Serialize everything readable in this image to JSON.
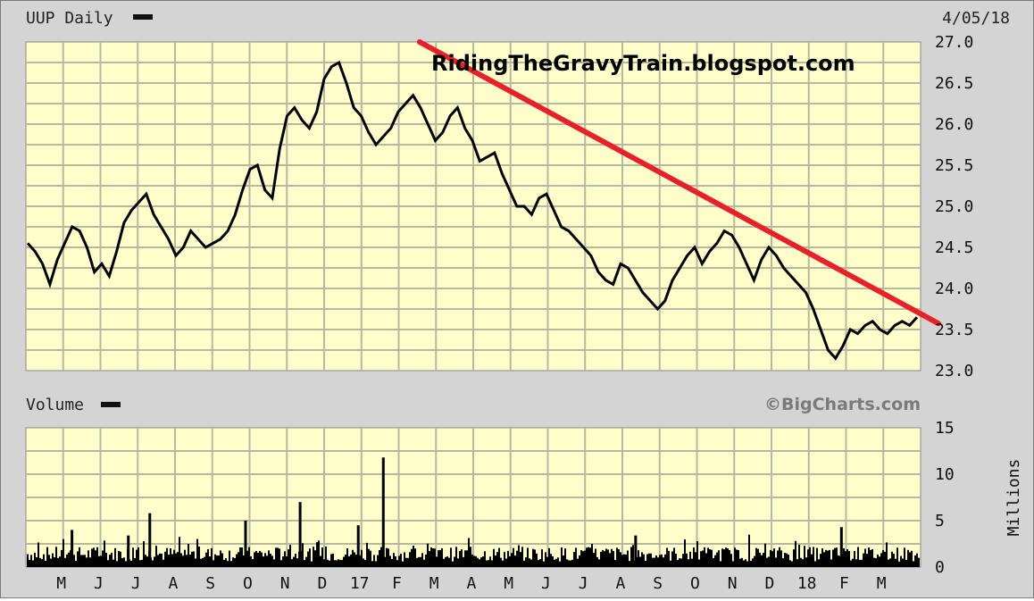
{
  "chart_data": [
    {
      "type": "line",
      "title": "UUP Daily",
      "date_label": "4/05/18",
      "watermark": "RidingTheGravyTrain.blogspot.com",
      "ylim": [
        23.0,
        27.0
      ],
      "y_ticks": [
        "27.0",
        "26.5",
        "26.0",
        "25.5",
        "25.0",
        "24.5",
        "24.0",
        "23.5",
        "23.0"
      ],
      "x_ticks": [
        "M",
        "J",
        "J",
        "A",
        "S",
        "O",
        "N",
        "D",
        "17",
        "F",
        "M",
        "A",
        "M",
        "J",
        "J",
        "A",
        "S",
        "O",
        "N",
        "D",
        "18",
        "F",
        "M"
      ],
      "grid": true,
      "series": [
        {
          "values": [
            24.55,
            24.45,
            24.3,
            24.05,
            24.35,
            24.55,
            24.75,
            24.7,
            24.5,
            24.2,
            24.3,
            24.15,
            24.45,
            24.8,
            24.95,
            25.05,
            25.15,
            24.9,
            24.75,
            24.6,
            24.4,
            24.5,
            24.7,
            24.6,
            24.5,
            24.55,
            24.6,
            24.7,
            24.9,
            25.2,
            25.45,
            25.5,
            25.2,
            25.1,
            25.7,
            26.1,
            26.2,
            26.05,
            25.95,
            26.15,
            26.55,
            26.7,
            26.75,
            26.5,
            26.2,
            26.1,
            25.9,
            25.75,
            25.85,
            25.95,
            26.15,
            26.25,
            26.35,
            26.2,
            26.0,
            25.8,
            25.9,
            26.1,
            26.2,
            25.95,
            25.8,
            25.55,
            25.6,
            25.65,
            25.4,
            25.2,
            25.0,
            25.0,
            24.9,
            25.1,
            25.15,
            24.95,
            24.75,
            24.7,
            24.6,
            24.5,
            24.4,
            24.2,
            24.1,
            24.05,
            24.3,
            24.25,
            24.1,
            23.95,
            23.85,
            23.75,
            23.85,
            24.1,
            24.25,
            24.4,
            24.5,
            24.3,
            24.45,
            24.55,
            24.7,
            24.65,
            24.5,
            24.3,
            24.1,
            24.35,
            24.5,
            24.4,
            24.25,
            24.15,
            24.05,
            23.95,
            23.75,
            23.5,
            23.25,
            23.15,
            23.3,
            23.5,
            23.45,
            23.55,
            23.6,
            23.5,
            23.45,
            23.55,
            23.6,
            23.55,
            23.65
          ]
        }
      ],
      "trendline": {
        "from": [
          0.44,
          27.0
        ],
        "to": [
          1.0,
          23.65
        ],
        "color": "#e8202a"
      }
    },
    {
      "type": "bar",
      "title": "Volume",
      "credit": "©BigCharts.com",
      "ylabel": "Millions",
      "ylim": [
        0,
        15
      ],
      "y_ticks": [
        "15",
        "10",
        "5",
        "0"
      ],
      "grid": true,
      "spikes": [
        {
          "pos": 0.137,
          "value": 5.8
        },
        {
          "pos": 0.244,
          "value": 5.0
        },
        {
          "pos": 0.305,
          "value": 7.0
        },
        {
          "pos": 0.398,
          "value": 11.8
        },
        {
          "pos": 0.113,
          "value": 3.4
        },
        {
          "pos": 0.05,
          "value": 4.0
        },
        {
          "pos": 0.37,
          "value": 4.5
        },
        {
          "pos": 0.91,
          "value": 4.3
        },
        {
          "pos": 0.68,
          "value": 3.4
        }
      ]
    }
  ]
}
